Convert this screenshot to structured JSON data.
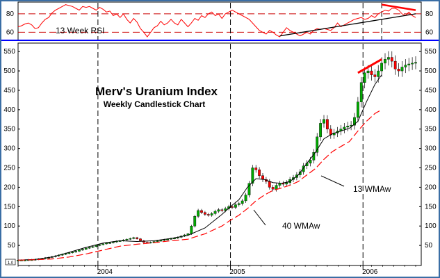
{
  "colors": {
    "frame": "#3a6ea5",
    "blue_line": "#0000ff",
    "rsi_line": "#ff0000",
    "ref_line": "#cc0000",
    "candle_up": "#00aa00",
    "candle_down": "#ff0000",
    "wma13": "#000000",
    "wma40": "#ff0000",
    "trend_red": "#ff0000",
    "trend_black": "#000000"
  },
  "chart_data": [
    {
      "type": "line",
      "panel": "rsi",
      "label": "13 Week RSI",
      "ylim": [
        52,
        92
      ],
      "y_ticks": [
        60,
        80
      ],
      "reference_lines": [
        60,
        80
      ],
      "x_labels": [
        "2004",
        "2005",
        "2006"
      ],
      "series": [
        {
          "name": "13 Week RSI",
          "x": [
            0,
            2,
            4,
            6,
            8,
            10,
            12,
            14,
            16,
            18,
            20,
            22,
            24,
            26,
            28,
            30,
            32,
            34,
            36,
            38,
            40,
            42,
            44,
            46,
            48,
            50,
            52,
            54,
            56,
            58,
            60,
            62,
            64,
            66,
            68,
            70,
            72,
            74,
            76,
            78,
            80,
            82,
            84,
            86,
            88,
            90,
            92,
            94,
            96,
            98,
            100,
            102,
            104,
            106,
            108,
            110,
            112,
            114,
            116,
            118,
            120,
            122,
            124,
            126,
            128,
            130,
            132,
            134,
            136,
            138,
            140,
            142,
            144,
            146,
            148,
            150,
            152,
            154,
            156,
            158,
            160,
            162,
            164,
            166,
            168,
            170,
            172,
            174,
            176,
            178,
            180,
            182,
            184,
            186,
            188,
            190,
            192,
            194,
            196,
            198,
            200,
            202,
            204,
            206,
            208,
            210,
            212,
            214,
            216,
            218,
            220,
            222,
            224,
            226,
            228,
            230,
            232,
            234
          ],
          "values": [
            66,
            67,
            69,
            70,
            68,
            64,
            65,
            70,
            74,
            76,
            81,
            84,
            86,
            88,
            90,
            89,
            88,
            86,
            84,
            88,
            87,
            88,
            86,
            84,
            87,
            85,
            82,
            83,
            78,
            80,
            76,
            80,
            74,
            70,
            75,
            71,
            64,
            60,
            55,
            60,
            65,
            67,
            72,
            68,
            70,
            74,
            70,
            68,
            74,
            70,
            66,
            70,
            75,
            73,
            78,
            76,
            80,
            82,
            78,
            80,
            75,
            80,
            82,
            84,
            82,
            80,
            78,
            76,
            74,
            70,
            66,
            62,
            60,
            58,
            62,
            60,
            57,
            55,
            60,
            65,
            62,
            60,
            58,
            56,
            58,
            60,
            58,
            62,
            64,
            63,
            64,
            63,
            62,
            65,
            70,
            66,
            68,
            70,
            72,
            74,
            75,
            76,
            74,
            75,
            78,
            76,
            80,
            82,
            84,
            83,
            86,
            86,
            84,
            80,
            78,
            82,
            78,
            76
          ]
        }
      ],
      "trendlines": [
        {
          "color": "red",
          "from": [
            214,
            90
          ],
          "to": [
            234,
            84
          ]
        },
        {
          "color": "black",
          "from": [
            154,
            56
          ],
          "to": [
            234,
            80
          ]
        }
      ]
    },
    {
      "type": "candlestick",
      "panel": "price",
      "title": "Merv's Uranium Index",
      "subtitle": "Weekly Candlestick Chart",
      "ylim": [
        0,
        570
      ],
      "y_ticks": [
        50,
        100,
        150,
        200,
        250,
        300,
        350,
        400,
        450,
        500,
        550
      ],
      "x_labels": [
        "2004",
        "2005",
        "2006"
      ],
      "x_label_positions": [
        47,
        125,
        203
      ],
      "annotations": [
        "13 WMAw",
        "40 WMAw"
      ],
      "candle_series": {
        "x": [
          0,
          2,
          4,
          6,
          8,
          10,
          12,
          14,
          16,
          18,
          20,
          22,
          24,
          26,
          28,
          30,
          32,
          34,
          36,
          38,
          40,
          42,
          44,
          46,
          48,
          50,
          52,
          54,
          56,
          58,
          60,
          62,
          64,
          66,
          68,
          70,
          72,
          74,
          76,
          78,
          80,
          82,
          84,
          86,
          88,
          90,
          92,
          94,
          96,
          98,
          100,
          102,
          104,
          106,
          108,
          110,
          112,
          114,
          116,
          118,
          120,
          122,
          124,
          126,
          128,
          130,
          132,
          134,
          136,
          138,
          140,
          142,
          144,
          146,
          148,
          150,
          152,
          154,
          156,
          158,
          160,
          162,
          164,
          166,
          168,
          170,
          172,
          174,
          176,
          178,
          180,
          182,
          184,
          186,
          188,
          190,
          192,
          194,
          196,
          198,
          200,
          202,
          204,
          206,
          208,
          210,
          212,
          214,
          216,
          218,
          220,
          222,
          224,
          226,
          228,
          230,
          232,
          234
        ],
        "close": [
          12,
          12,
          12,
          13,
          13,
          14,
          15,
          16,
          18,
          19,
          21,
          23,
          25,
          27,
          29,
          31,
          33,
          35,
          38,
          40,
          43,
          45,
          47,
          50,
          52,
          54,
          56,
          57,
          59,
          61,
          62,
          64,
          66,
          68,
          70,
          67,
          62,
          58,
          57,
          58,
          60,
          62,
          63,
          65,
          66,
          68,
          69,
          71,
          74,
          77,
          80,
          100,
          125,
          140,
          135,
          130,
          128,
          132,
          138,
          142,
          140,
          145,
          150,
          148,
          155,
          158,
          165,
          180,
          210,
          250,
          245,
          230,
          220,
          215,
          200,
          195,
          205,
          210,
          208,
          212,
          220,
          225,
          232,
          240,
          255,
          262,
          270,
          290,
          330,
          365,
          375,
          350,
          335,
          340,
          345,
          350,
          355,
          358,
          360,
          380,
          420,
          470,
          495,
          500,
          490,
          485,
          500,
          520,
          530,
          535,
          525,
          505,
          500,
          510,
          515,
          518,
          520,
          522
        ]
      },
      "series": [
        {
          "name": "13 WMAw",
          "x": [
            0,
            10,
            20,
            30,
            40,
            50,
            60,
            70,
            80,
            90,
            100,
            110,
            120,
            125,
            130,
            135,
            140,
            145,
            150,
            155,
            160,
            165,
            170,
            175,
            180,
            185,
            190,
            195,
            200,
            205,
            210,
            214
          ],
          "values": [
            12,
            14,
            20,
            32,
            45,
            56,
            62,
            60,
            62,
            68,
            76,
            95,
            130,
            150,
            168,
            200,
            222,
            220,
            212,
            210,
            215,
            232,
            262,
            290,
            325,
            338,
            345,
            352,
            370,
            420,
            465,
            490
          ]
        },
        {
          "name": "40 WMAw",
          "x": [
            0,
            10,
            20,
            30,
            40,
            50,
            60,
            70,
            80,
            90,
            100,
            110,
            120,
            125,
            130,
            135,
            140,
            145,
            150,
            155,
            160,
            165,
            170,
            175,
            180,
            185,
            190,
            195,
            200,
            205,
            210,
            214
          ],
          "values": [
            12,
            13,
            15,
            20,
            28,
            38,
            48,
            53,
            57,
            62,
            66,
            80,
            100,
            115,
            128,
            145,
            165,
            180,
            192,
            198,
            205,
            215,
            232,
            248,
            272,
            292,
            305,
            318,
            345,
            370,
            390,
            400
          ]
        }
      ],
      "trendlines": [
        {
          "color": "red",
          "from": [
            200,
            495
          ],
          "to": [
            214,
            530
          ]
        }
      ]
    }
  ],
  "labels": {
    "rsi_label": "13 Week RSI",
    "title": "Merv's Uranium Index",
    "subtitle": "Weekly Candlestick Chart",
    "wma13_label": "13 WMAw",
    "wma40_label": "40 WMAw",
    "corner_label": "1.0"
  }
}
